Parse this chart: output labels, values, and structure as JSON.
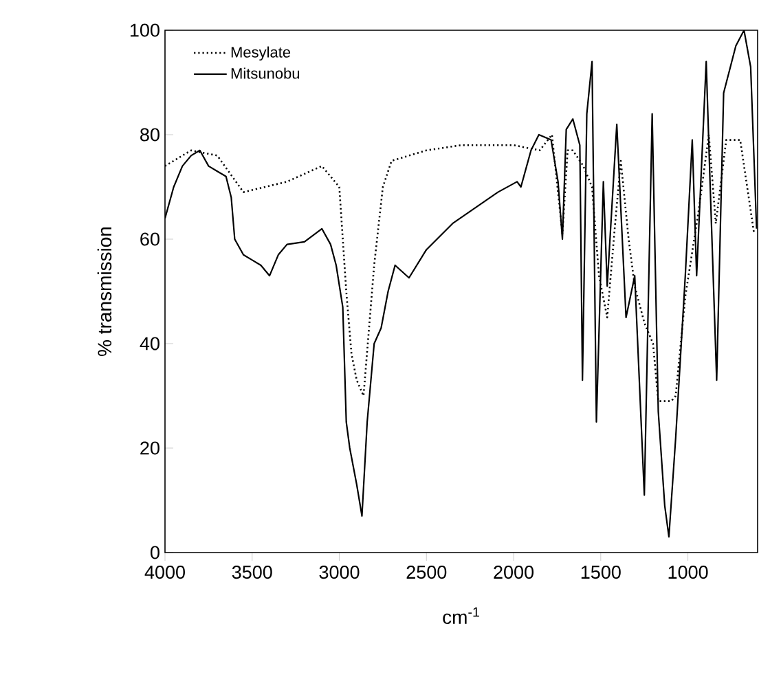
{
  "chart_data": {
    "type": "line",
    "xlabel": "cm$^{-1}$",
    "ylabel": "% transmission",
    "xlim": [
      4000,
      600
    ],
    "xticks": [
      4000,
      3500,
      3000,
      2500,
      2000,
      1500,
      1000
    ],
    "ylim": [
      0,
      100
    ],
    "yticks": [
      0,
      20,
      40,
      60,
      80,
      100
    ],
    "legend": "top left",
    "grid": false,
    "marker": "none",
    "series": [
      {
        "name": "Mesylate",
        "color": "#000000",
        "line_style": "dotted",
        "x": [
          4000,
          3850,
          3700,
          3550,
          3300,
          3100,
          3000,
          2960,
          2930,
          2900,
          2861,
          2800,
          2750,
          2700,
          2500,
          2300,
          2000,
          1850,
          1780,
          1720,
          1690,
          1660,
          1600,
          1550,
          1510,
          1463,
          1420,
          1385,
          1340,
          1305,
          1250,
          1200,
          1170,
          1095,
          1070,
          1015,
          936,
          880,
          840,
          780,
          700,
          620
        ],
        "values": [
          74,
          77,
          76,
          69,
          71,
          74,
          70,
          50,
          38,
          33,
          30,
          55,
          70,
          75,
          77,
          78,
          78,
          77,
          80,
          61,
          77,
          77,
          74,
          70,
          53,
          45,
          62,
          75,
          60,
          51,
          44,
          40,
          29,
          29,
          30,
          49,
          66,
          80,
          63,
          79,
          79,
          61
        ]
      },
      {
        "name": "Mitsunobu",
        "color": "#000000",
        "line_style": "solid",
        "x": [
          4000,
          3950,
          3900,
          3850,
          3800,
          3750,
          3700,
          3650,
          3620,
          3600,
          3550,
          3500,
          3450,
          3400,
          3350,
          3300,
          3200,
          3100,
          3050,
          3018,
          2980,
          2960,
          2940,
          2900,
          2870,
          2840,
          2800,
          2760,
          2720,
          2680,
          2600,
          2500,
          2350,
          2090,
          1980,
          1958,
          1900,
          1855,
          1785,
          1745,
          1720,
          1698,
          1660,
          1620,
          1605,
          1580,
          1550,
          1525,
          1485,
          1463,
          1408,
          1355,
          1305,
          1250,
          1205,
          1170,
          1133,
          1109,
          1070,
          1015,
          975,
          950,
          895,
          873,
          835,
          795,
          725,
          678,
          640,
          606
        ],
        "values": [
          64,
          70,
          74,
          76,
          77,
          74,
          73,
          72,
          68,
          60,
          57,
          56,
          55,
          53,
          57,
          59,
          59.5,
          62,
          59,
          55,
          47,
          25,
          20,
          13,
          7,
          25,
          40,
          43,
          50,
          55,
          52.6,
          58,
          63,
          69,
          71,
          70,
          77,
          80,
          79,
          71,
          60,
          81,
          83,
          78,
          33,
          84,
          94,
          25,
          71,
          51,
          82,
          45,
          53,
          11,
          84,
          27,
          9,
          3,
          22,
          53,
          79,
          53,
          94,
          71,
          33,
          88,
          97,
          100,
          93,
          62
        ]
      }
    ]
  }
}
